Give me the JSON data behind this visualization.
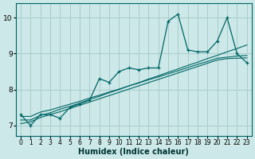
{
  "xlabel": "Humidex (Indice chaleur)",
  "bg_color": "#cce8e8",
  "grid_color": "#aacccc",
  "line_color": "#006666",
  "xlim": [
    -0.5,
    23.5
  ],
  "ylim": [
    6.7,
    10.4
  ],
  "yticks": [
    7,
    8,
    9,
    10
  ],
  "xticks": [
    0,
    1,
    2,
    3,
    4,
    5,
    6,
    7,
    8,
    9,
    10,
    11,
    12,
    13,
    14,
    15,
    16,
    17,
    18,
    19,
    20,
    21,
    22,
    23
  ],
  "main_series": [
    7.3,
    7.0,
    7.3,
    7.3,
    7.2,
    7.5,
    7.6,
    7.7,
    8.3,
    8.2,
    8.5,
    8.6,
    8.55,
    8.6,
    8.6,
    9.9,
    10.1,
    9.1,
    9.05,
    9.05,
    9.35,
    10.0,
    9.0,
    8.75
  ],
  "trend_lines": [
    [
      7.15,
      7.15,
      7.28,
      7.35,
      7.45,
      7.53,
      7.62,
      7.72,
      7.81,
      7.91,
      8.0,
      8.1,
      8.19,
      8.29,
      8.38,
      8.48,
      8.57,
      8.67,
      8.76,
      8.86,
      8.95,
      9.05,
      9.14,
      9.24
    ],
    [
      7.05,
      7.1,
      7.22,
      7.3,
      7.38,
      7.47,
      7.56,
      7.65,
      7.74,
      7.83,
      7.92,
      8.01,
      8.1,
      8.19,
      8.28,
      8.37,
      8.46,
      8.55,
      8.64,
      8.73,
      8.82,
      8.86,
      8.87,
      8.88
    ],
    [
      7.25,
      7.25,
      7.37,
      7.43,
      7.51,
      7.59,
      7.67,
      7.76,
      7.84,
      7.93,
      8.01,
      8.1,
      8.18,
      8.27,
      8.35,
      8.44,
      8.52,
      8.61,
      8.7,
      8.78,
      8.87,
      8.9,
      8.93,
      8.95
    ]
  ]
}
